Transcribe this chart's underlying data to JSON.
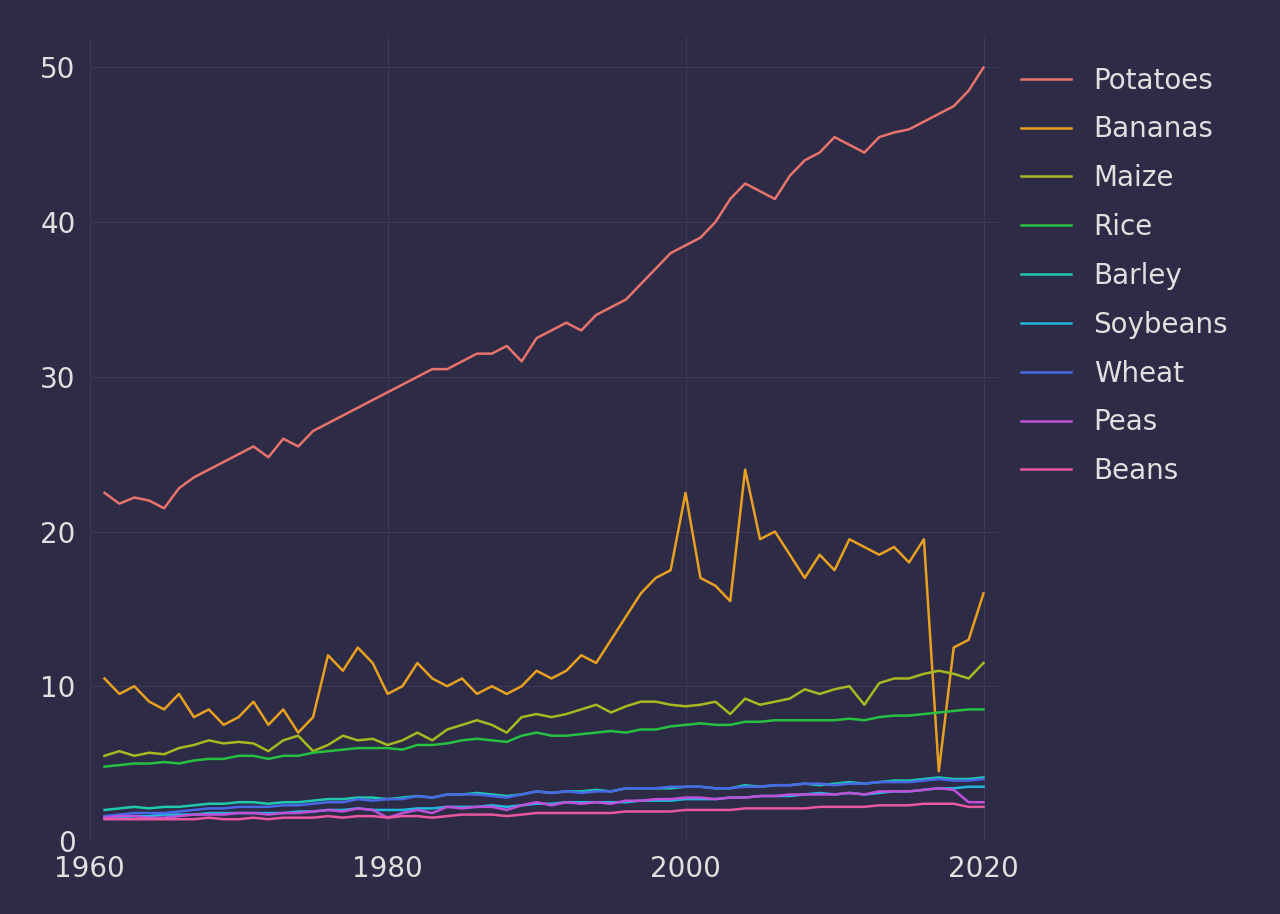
{
  "background_color": "#2d2b45",
  "grid_color": "#3d3b5a",
  "text_color": "#e0e0e0",
  "xlim": [
    1961,
    2021
  ],
  "ylim": [
    0,
    52
  ],
  "yticks": [
    0,
    10,
    20,
    30,
    40,
    50
  ],
  "xticks": [
    1960,
    1980,
    2000,
    2020
  ],
  "series": [
    {
      "label": "Potatoes",
      "color": "#e8736c",
      "linewidth": 1.8,
      "years": [
        1961,
        1962,
        1963,
        1964,
        1965,
        1966,
        1967,
        1968,
        1969,
        1970,
        1971,
        1972,
        1973,
        1974,
        1975,
        1976,
        1977,
        1978,
        1979,
        1980,
        1981,
        1982,
        1983,
        1984,
        1985,
        1986,
        1987,
        1988,
        1989,
        1990,
        1991,
        1992,
        1993,
        1994,
        1995,
        1996,
        1997,
        1998,
        1999,
        2000,
        2001,
        2002,
        2003,
        2004,
        2005,
        2006,
        2007,
        2008,
        2009,
        2010,
        2011,
        2012,
        2013,
        2014,
        2015,
        2016,
        2017,
        2018,
        2019,
        2020
      ],
      "values": [
        22.5,
        21.8,
        22.2,
        22.0,
        21.5,
        22.8,
        23.5,
        24.0,
        24.5,
        25.0,
        25.5,
        24.8,
        26.0,
        25.5,
        26.5,
        27.0,
        27.5,
        28.0,
        28.5,
        29.0,
        29.5,
        30.0,
        30.5,
        30.5,
        31.0,
        31.5,
        31.5,
        32.0,
        31.0,
        32.5,
        33.0,
        33.5,
        33.0,
        34.0,
        34.5,
        35.0,
        36.0,
        37.0,
        38.0,
        38.5,
        39.0,
        40.0,
        41.5,
        42.5,
        42.0,
        41.5,
        43.0,
        44.0,
        44.5,
        45.5,
        45.0,
        44.5,
        45.5,
        45.8,
        46.0,
        46.5,
        47.0,
        47.5,
        48.5,
        50.0
      ]
    },
    {
      "label": "Bananas",
      "color": "#e8a020",
      "linewidth": 1.8,
      "years": [
        1961,
        1962,
        1963,
        1964,
        1965,
        1966,
        1967,
        1968,
        1969,
        1970,
        1971,
        1972,
        1973,
        1974,
        1975,
        1976,
        1977,
        1978,
        1979,
        1980,
        1981,
        1982,
        1983,
        1984,
        1985,
        1986,
        1987,
        1988,
        1989,
        1990,
        1991,
        1992,
        1993,
        1994,
        1995,
        1996,
        1997,
        1998,
        1999,
        2000,
        2001,
        2002,
        2003,
        2004,
        2005,
        2006,
        2007,
        2008,
        2009,
        2010,
        2011,
        2012,
        2013,
        2014,
        2015,
        2016,
        2017,
        2018,
        2019,
        2020
      ],
      "values": [
        10.5,
        9.5,
        10.0,
        9.0,
        8.5,
        9.5,
        8.0,
        8.5,
        7.5,
        8.0,
        9.0,
        7.5,
        8.5,
        7.0,
        8.0,
        12.0,
        11.0,
        12.5,
        11.5,
        9.5,
        10.0,
        11.5,
        10.5,
        10.0,
        10.5,
        9.5,
        10.0,
        9.5,
        10.0,
        11.0,
        10.5,
        11.0,
        12.0,
        11.5,
        13.0,
        14.5,
        16.0,
        17.0,
        17.5,
        22.5,
        17.0,
        16.5,
        15.5,
        24.0,
        19.5,
        20.0,
        18.5,
        17.0,
        18.5,
        17.5,
        19.5,
        19.0,
        18.5,
        19.0,
        18.0,
        19.5,
        4.5,
        12.5,
        13.0,
        16.0
      ]
    },
    {
      "label": "Maize",
      "color": "#a8b820",
      "linewidth": 1.8,
      "years": [
        1961,
        1962,
        1963,
        1964,
        1965,
        1966,
        1967,
        1968,
        1969,
        1970,
        1971,
        1972,
        1973,
        1974,
        1975,
        1976,
        1977,
        1978,
        1979,
        1980,
        1981,
        1982,
        1983,
        1984,
        1985,
        1986,
        1987,
        1988,
        1989,
        1990,
        1991,
        1992,
        1993,
        1994,
        1995,
        1996,
        1997,
        1998,
        1999,
        2000,
        2001,
        2002,
        2003,
        2004,
        2005,
        2006,
        2007,
        2008,
        2009,
        2010,
        2011,
        2012,
        2013,
        2014,
        2015,
        2016,
        2017,
        2018,
        2019,
        2020
      ],
      "values": [
        5.5,
        5.8,
        5.5,
        5.7,
        5.6,
        6.0,
        6.2,
        6.5,
        6.3,
        6.4,
        6.3,
        5.8,
        6.5,
        6.8,
        5.8,
        6.2,
        6.8,
        6.5,
        6.6,
        6.2,
        6.5,
        7.0,
        6.5,
        7.2,
        7.5,
        7.8,
        7.5,
        7.0,
        8.0,
        8.2,
        8.0,
        8.2,
        8.5,
        8.8,
        8.3,
        8.7,
        9.0,
        9.0,
        8.8,
        8.7,
        8.8,
        9.0,
        8.2,
        9.2,
        8.8,
        9.0,
        9.2,
        9.8,
        9.5,
        9.8,
        10.0,
        8.8,
        10.2,
        10.5,
        10.5,
        10.8,
        11.0,
        10.8,
        10.5,
        11.5
      ]
    },
    {
      "label": "Rice",
      "color": "#28c040",
      "linewidth": 1.8,
      "years": [
        1961,
        1962,
        1963,
        1964,
        1965,
        1966,
        1967,
        1968,
        1969,
        1970,
        1971,
        1972,
        1973,
        1974,
        1975,
        1976,
        1977,
        1978,
        1979,
        1980,
        1981,
        1982,
        1983,
        1984,
        1985,
        1986,
        1987,
        1988,
        1989,
        1990,
        1991,
        1992,
        1993,
        1994,
        1995,
        1996,
        1997,
        1998,
        1999,
        2000,
        2001,
        2002,
        2003,
        2004,
        2005,
        2006,
        2007,
        2008,
        2009,
        2010,
        2011,
        2012,
        2013,
        2014,
        2015,
        2016,
        2017,
        2018,
        2019,
        2020
      ],
      "values": [
        4.8,
        4.9,
        5.0,
        5.0,
        5.1,
        5.0,
        5.2,
        5.3,
        5.3,
        5.5,
        5.5,
        5.3,
        5.5,
        5.5,
        5.7,
        5.8,
        5.9,
        6.0,
        6.0,
        6.0,
        5.9,
        6.2,
        6.2,
        6.3,
        6.5,
        6.6,
        6.5,
        6.4,
        6.8,
        7.0,
        6.8,
        6.8,
        6.9,
        7.0,
        7.1,
        7.0,
        7.2,
        7.2,
        7.4,
        7.5,
        7.6,
        7.5,
        7.5,
        7.7,
        7.7,
        7.8,
        7.8,
        7.8,
        7.8,
        7.8,
        7.9,
        7.8,
        8.0,
        8.1,
        8.1,
        8.2,
        8.3,
        8.4,
        8.5,
        8.5
      ]
    },
    {
      "label": "Barley",
      "color": "#20c8b0",
      "linewidth": 1.8,
      "years": [
        1961,
        1962,
        1963,
        1964,
        1965,
        1966,
        1967,
        1968,
        1969,
        1970,
        1971,
        1972,
        1973,
        1974,
        1975,
        1976,
        1977,
        1978,
        1979,
        1980,
        1981,
        1982,
        1983,
        1984,
        1985,
        1986,
        1987,
        1988,
        1989,
        1990,
        1991,
        1992,
        1993,
        1994,
        1995,
        1996,
        1997,
        1998,
        1999,
        2000,
        2001,
        2002,
        2003,
        2004,
        2005,
        2006,
        2007,
        2008,
        2009,
        2010,
        2011,
        2012,
        2013,
        2014,
        2015,
        2016,
        2017,
        2018,
        2019,
        2020
      ],
      "values": [
        2.0,
        2.1,
        2.2,
        2.1,
        2.2,
        2.2,
        2.3,
        2.4,
        2.4,
        2.5,
        2.5,
        2.4,
        2.5,
        2.5,
        2.6,
        2.7,
        2.7,
        2.8,
        2.8,
        2.7,
        2.8,
        2.9,
        2.8,
        3.0,
        3.0,
        3.1,
        3.0,
        2.9,
        3.0,
        3.2,
        3.1,
        3.2,
        3.2,
        3.3,
        3.2,
        3.4,
        3.4,
        3.4,
        3.4,
        3.5,
        3.5,
        3.4,
        3.4,
        3.6,
        3.5,
        3.6,
        3.6,
        3.7,
        3.6,
        3.7,
        3.8,
        3.7,
        3.8,
        3.9,
        3.9,
        4.0,
        4.1,
        4.0,
        4.0,
        4.1
      ]
    },
    {
      "label": "Soybeans",
      "color": "#20b8e0",
      "linewidth": 1.8,
      "years": [
        1961,
        1962,
        1963,
        1964,
        1965,
        1966,
        1967,
        1968,
        1969,
        1970,
        1971,
        1972,
        1973,
        1974,
        1975,
        1976,
        1977,
        1978,
        1979,
        1980,
        1981,
        1982,
        1983,
        1984,
        1985,
        1986,
        1987,
        1988,
        1989,
        1990,
        1991,
        1992,
        1993,
        1994,
        1995,
        1996,
        1997,
        1998,
        1999,
        2000,
        2001,
        2002,
        2003,
        2004,
        2005,
        2006,
        2007,
        2008,
        2009,
        2010,
        2011,
        2012,
        2013,
        2014,
        2015,
        2016,
        2017,
        2018,
        2019,
        2020
      ],
      "values": [
        1.5,
        1.5,
        1.6,
        1.6,
        1.7,
        1.7,
        1.7,
        1.8,
        1.8,
        1.8,
        1.8,
        1.8,
        1.8,
        1.9,
        1.9,
        2.0,
        2.0,
        2.1,
        2.0,
        2.0,
        2.0,
        2.1,
        2.1,
        2.2,
        2.2,
        2.2,
        2.3,
        2.2,
        2.3,
        2.4,
        2.4,
        2.5,
        2.5,
        2.5,
        2.5,
        2.5,
        2.6,
        2.6,
        2.6,
        2.7,
        2.7,
        2.7,
        2.8,
        2.8,
        2.9,
        2.9,
        2.9,
        3.0,
        3.1,
        3.0,
        3.1,
        3.0,
        3.1,
        3.2,
        3.2,
        3.3,
        3.4,
        3.4,
        3.5,
        3.5
      ]
    },
    {
      "label": "Wheat",
      "color": "#4868e8",
      "linewidth": 1.8,
      "years": [
        1961,
        1962,
        1963,
        1964,
        1965,
        1966,
        1967,
        1968,
        1969,
        1970,
        1971,
        1972,
        1973,
        1974,
        1975,
        1976,
        1977,
        1978,
        1979,
        1980,
        1981,
        1982,
        1983,
        1984,
        1985,
        1986,
        1987,
        1988,
        1989,
        1990,
        1991,
        1992,
        1993,
        1994,
        1995,
        1996,
        1997,
        1998,
        1999,
        2000,
        2001,
        2002,
        2003,
        2004,
        2005,
        2006,
        2007,
        2008,
        2009,
        2010,
        2011,
        2012,
        2013,
        2014,
        2015,
        2016,
        2017,
        2018,
        2019,
        2020
      ],
      "values": [
        1.6,
        1.7,
        1.8,
        1.8,
        1.8,
        1.9,
        2.0,
        2.1,
        2.1,
        2.2,
        2.2,
        2.2,
        2.3,
        2.3,
        2.4,
        2.5,
        2.5,
        2.7,
        2.6,
        2.7,
        2.7,
        2.9,
        2.8,
        3.0,
        3.0,
        3.0,
        2.9,
        2.8,
        3.0,
        3.2,
        3.1,
        3.2,
        3.1,
        3.2,
        3.2,
        3.4,
        3.4,
        3.4,
        3.5,
        3.5,
        3.5,
        3.4,
        3.4,
        3.5,
        3.5,
        3.6,
        3.6,
        3.7,
        3.7,
        3.6,
        3.7,
        3.7,
        3.8,
        3.8,
        3.8,
        3.9,
        4.0,
        3.9,
        3.9,
        4.0
      ]
    },
    {
      "label": "Peas",
      "color": "#c050d8",
      "linewidth": 1.8,
      "years": [
        1961,
        1962,
        1963,
        1964,
        1965,
        1966,
        1967,
        1968,
        1969,
        1970,
        1971,
        1972,
        1973,
        1974,
        1975,
        1976,
        1977,
        1978,
        1979,
        1980,
        1981,
        1982,
        1983,
        1984,
        1985,
        1986,
        1987,
        1988,
        1989,
        1990,
        1991,
        1992,
        1993,
        1994,
        1995,
        1996,
        1997,
        1998,
        1999,
        2000,
        2001,
        2002,
        2003,
        2004,
        2005,
        2006,
        2007,
        2008,
        2009,
        2010,
        2011,
        2012,
        2013,
        2014,
        2015,
        2016,
        2017,
        2018,
        2019,
        2020
      ],
      "values": [
        1.5,
        1.6,
        1.6,
        1.5,
        1.5,
        1.6,
        1.7,
        1.7,
        1.7,
        1.8,
        1.8,
        1.7,
        1.8,
        1.8,
        1.9,
        2.0,
        1.9,
        2.1,
        2.0,
        1.5,
        1.8,
        2.0,
        1.8,
        2.2,
        2.1,
        2.2,
        2.2,
        2.0,
        2.3,
        2.5,
        2.3,
        2.5,
        2.4,
        2.5,
        2.4,
        2.6,
        2.6,
        2.7,
        2.7,
        2.8,
        2.8,
        2.7,
        2.8,
        2.8,
        2.9,
        2.9,
        3.0,
        3.0,
        3.0,
        3.0,
        3.1,
        3.0,
        3.2,
        3.2,
        3.2,
        3.3,
        3.4,
        3.3,
        2.5,
        2.5
      ]
    },
    {
      "label": "Beans",
      "color": "#e858a0",
      "linewidth": 1.8,
      "years": [
        1961,
        1962,
        1963,
        1964,
        1965,
        1966,
        1967,
        1968,
        1969,
        1970,
        1971,
        1972,
        1973,
        1974,
        1975,
        1976,
        1977,
        1978,
        1979,
        1980,
        1981,
        1982,
        1983,
        1984,
        1985,
        1986,
        1987,
        1988,
        1989,
        1990,
        1991,
        1992,
        1993,
        1994,
        1995,
        1996,
        1997,
        1998,
        1999,
        2000,
        2001,
        2002,
        2003,
        2004,
        2005,
        2006,
        2007,
        2008,
        2009,
        2010,
        2011,
        2012,
        2013,
        2014,
        2015,
        2016,
        2017,
        2018,
        2019,
        2020
      ],
      "values": [
        1.4,
        1.4,
        1.4,
        1.4,
        1.4,
        1.4,
        1.4,
        1.5,
        1.4,
        1.4,
        1.5,
        1.4,
        1.5,
        1.5,
        1.5,
        1.6,
        1.5,
        1.6,
        1.6,
        1.5,
        1.6,
        1.6,
        1.5,
        1.6,
        1.7,
        1.7,
        1.7,
        1.6,
        1.7,
        1.8,
        1.8,
        1.8,
        1.8,
        1.8,
        1.8,
        1.9,
        1.9,
        1.9,
        1.9,
        2.0,
        2.0,
        2.0,
        2.0,
        2.1,
        2.1,
        2.1,
        2.1,
        2.1,
        2.2,
        2.2,
        2.2,
        2.2,
        2.3,
        2.3,
        2.3,
        2.4,
        2.4,
        2.4,
        2.2,
        2.2
      ]
    }
  ]
}
